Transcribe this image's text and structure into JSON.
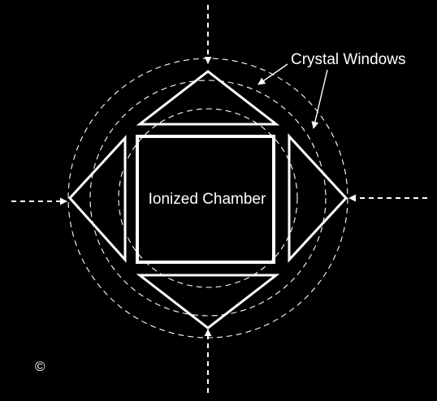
{
  "diagram": {
    "labels": {
      "crystal_windows": "Crystal Windows",
      "chamber": "Ionized Chamber",
      "copyright": "©"
    },
    "colors": {
      "background": "#000000",
      "stroke": "#ffffff"
    }
  }
}
